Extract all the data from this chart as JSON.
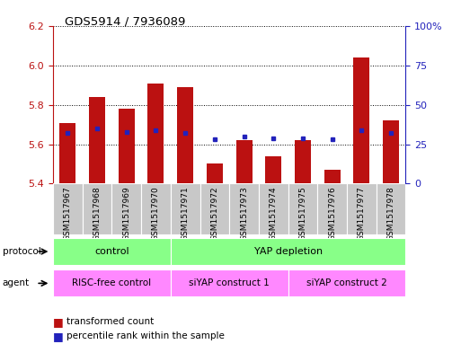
{
  "title": "GDS5914 / 7936089",
  "samples": [
    "GSM1517967",
    "GSM1517968",
    "GSM1517969",
    "GSM1517970",
    "GSM1517971",
    "GSM1517972",
    "GSM1517973",
    "GSM1517974",
    "GSM1517975",
    "GSM1517976",
    "GSM1517977",
    "GSM1517978"
  ],
  "transformed_count": [
    5.71,
    5.84,
    5.78,
    5.91,
    5.89,
    5.5,
    5.62,
    5.54,
    5.62,
    5.47,
    6.04,
    5.72
  ],
  "percentile_rank": [
    32,
    35,
    33,
    34,
    32,
    28,
    30,
    29,
    29,
    28,
    34,
    32
  ],
  "ylim_left": [
    5.4,
    6.2
  ],
  "ylim_right": [
    0,
    100
  ],
  "yticks_left": [
    5.4,
    5.6,
    5.8,
    6.0,
    6.2
  ],
  "yticks_right": [
    0,
    25,
    50,
    75,
    100
  ],
  "bar_color": "#BB1111",
  "dot_color": "#2222BB",
  "protocol_color": "#88FF88",
  "agent_color": "#FF88FF",
  "xlab_bg_color": "#CCCCCC",
  "legend_items": [
    "transformed count",
    "percentile rank within the sample"
  ],
  "protocol_rows": [
    {
      "label": "control",
      "start": 0,
      "end": 3
    },
    {
      "label": "YAP depletion",
      "start": 4,
      "end": 11
    }
  ],
  "agent_rows": [
    {
      "label": "RISC-free control",
      "start": 0,
      "end": 3
    },
    {
      "label": "siYAP construct 1",
      "start": 4,
      "end": 7
    },
    {
      "label": "siYAP construct 2",
      "start": 8,
      "end": 11
    }
  ]
}
